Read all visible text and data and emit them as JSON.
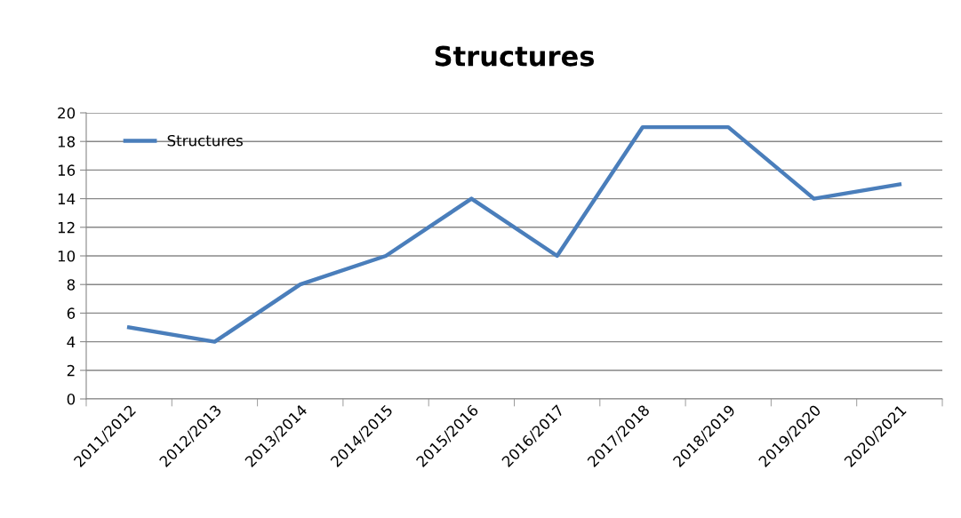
{
  "chart_data": {
    "type": "line",
    "title": "Structures",
    "categories": [
      "2011/2012",
      "2012/2013",
      "2013/2014",
      "2014/2015",
      "2015/2016",
      "2016/2017",
      "2017/2018",
      "2018/2019",
      "2019/2020",
      "2020/2021"
    ],
    "series": [
      {
        "name": "Structures",
        "color": "#4a7ebb",
        "values": [
          5,
          4,
          8,
          10,
          14,
          10,
          19,
          19,
          14,
          15
        ]
      }
    ],
    "ylim": [
      0,
      20
    ],
    "yticks": [
      0,
      2,
      4,
      6,
      8,
      10,
      12,
      14,
      16,
      18,
      20
    ],
    "grid": "y",
    "legend": "top left",
    "marker": "none",
    "line_style": "solid"
  }
}
